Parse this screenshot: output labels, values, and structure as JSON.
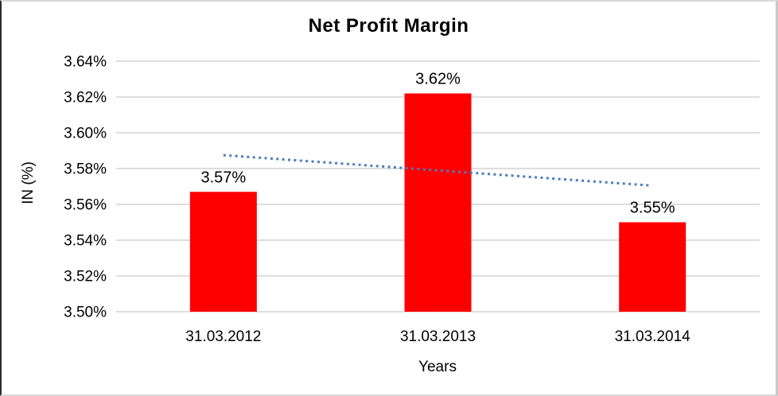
{
  "chart_data": {
    "type": "bar",
    "title": "Net Profit Margin",
    "xlabel": "Years",
    "ylabel": "IN (%)",
    "categories": [
      "31.03.2012",
      "31.03.2013",
      "31.03.2014"
    ],
    "series": [
      {
        "name": "Net Profit Margin",
        "values": [
          3.567,
          3.622,
          3.55
        ],
        "value_labels": [
          "3.57%",
          "3.62%",
          "3.55%"
        ],
        "color": "#ff0000"
      }
    ],
    "trendline": {
      "type": "linear",
      "style": "dotted",
      "color": "#4a7ebb",
      "start_value": 3.5875,
      "end_value": 3.5706
    },
    "ylim": [
      3.5,
      3.64
    ],
    "yticks": [
      {
        "value": 3.64,
        "label": "3.64%"
      },
      {
        "value": 3.62,
        "label": "3.62%"
      },
      {
        "value": 3.6,
        "label": "3.60%"
      },
      {
        "value": 3.58,
        "label": "3.58%"
      },
      {
        "value": 3.56,
        "label": "3.56%"
      },
      {
        "value": 3.54,
        "label": "3.54%"
      },
      {
        "value": 3.52,
        "label": "3.52%"
      },
      {
        "value": 3.5,
        "label": "3.50%"
      }
    ],
    "grid": "horizontal",
    "gridline_color": "#d3d3d3",
    "legend_position": "none",
    "background_color": "#ffffff"
  }
}
